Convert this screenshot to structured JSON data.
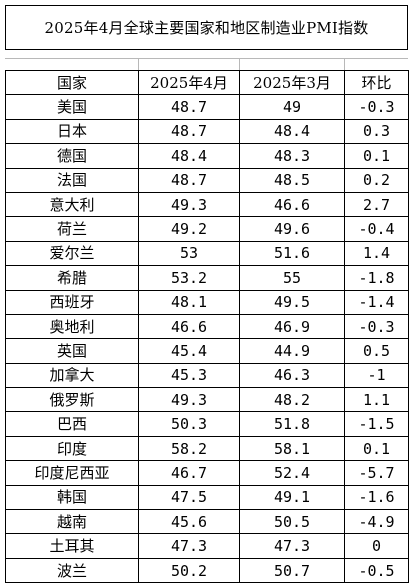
{
  "title": "2025年4月全球主要国家和地区制造业PMI指数",
  "table": {
    "headers": [
      "国家",
      "2025年4月",
      "2025年3月",
      "环比"
    ],
    "rows": [
      {
        "country": "美国",
        "apr": "48.7",
        "mar": "49",
        "mom": "-0.3"
      },
      {
        "country": "日本",
        "apr": "48.7",
        "mar": "48.4",
        "mom": "0.3"
      },
      {
        "country": "德国",
        "apr": "48.4",
        "mar": "48.3",
        "mom": "0.1"
      },
      {
        "country": "法国",
        "apr": "48.7",
        "mar": "48.5",
        "mom": "0.2"
      },
      {
        "country": "意大利",
        "apr": "49.3",
        "mar": "46.6",
        "mom": "2.7"
      },
      {
        "country": "荷兰",
        "apr": "49.2",
        "mar": "49.6",
        "mom": "-0.4"
      },
      {
        "country": "爱尔兰",
        "apr": "53",
        "mar": "51.6",
        "mom": "1.4"
      },
      {
        "country": "希腊",
        "apr": "53.2",
        "mar": "55",
        "mom": "-1.8"
      },
      {
        "country": "西班牙",
        "apr": "48.1",
        "mar": "49.5",
        "mom": "-1.4"
      },
      {
        "country": "奥地利",
        "apr": "46.6",
        "mar": "46.9",
        "mom": "-0.3"
      },
      {
        "country": "英国",
        "apr": "45.4",
        "mar": "44.9",
        "mom": "0.5"
      },
      {
        "country": "加拿大",
        "apr": "45.3",
        "mar": "46.3",
        "mom": "-1"
      },
      {
        "country": "俄罗斯",
        "apr": "49.3",
        "mar": "48.2",
        "mom": "1.1"
      },
      {
        "country": "巴西",
        "apr": "50.3",
        "mar": "51.8",
        "mom": "-1.5"
      },
      {
        "country": "印度",
        "apr": "58.2",
        "mar": "58.1",
        "mom": "0.1"
      },
      {
        "country": "印度尼西亚",
        "apr": "46.7",
        "mar": "52.4",
        "mom": "-5.7"
      },
      {
        "country": "韩国",
        "apr": "47.5",
        "mar": "49.1",
        "mom": "-1.6"
      },
      {
        "country": "越南",
        "apr": "45.6",
        "mar": "50.5",
        "mom": "-4.9"
      },
      {
        "country": "土耳其",
        "apr": "47.3",
        "mar": "47.3",
        "mom": "0"
      },
      {
        "country": "波兰",
        "apr": "50.2",
        "mar": "50.7",
        "mom": "-0.5"
      }
    ]
  }
}
